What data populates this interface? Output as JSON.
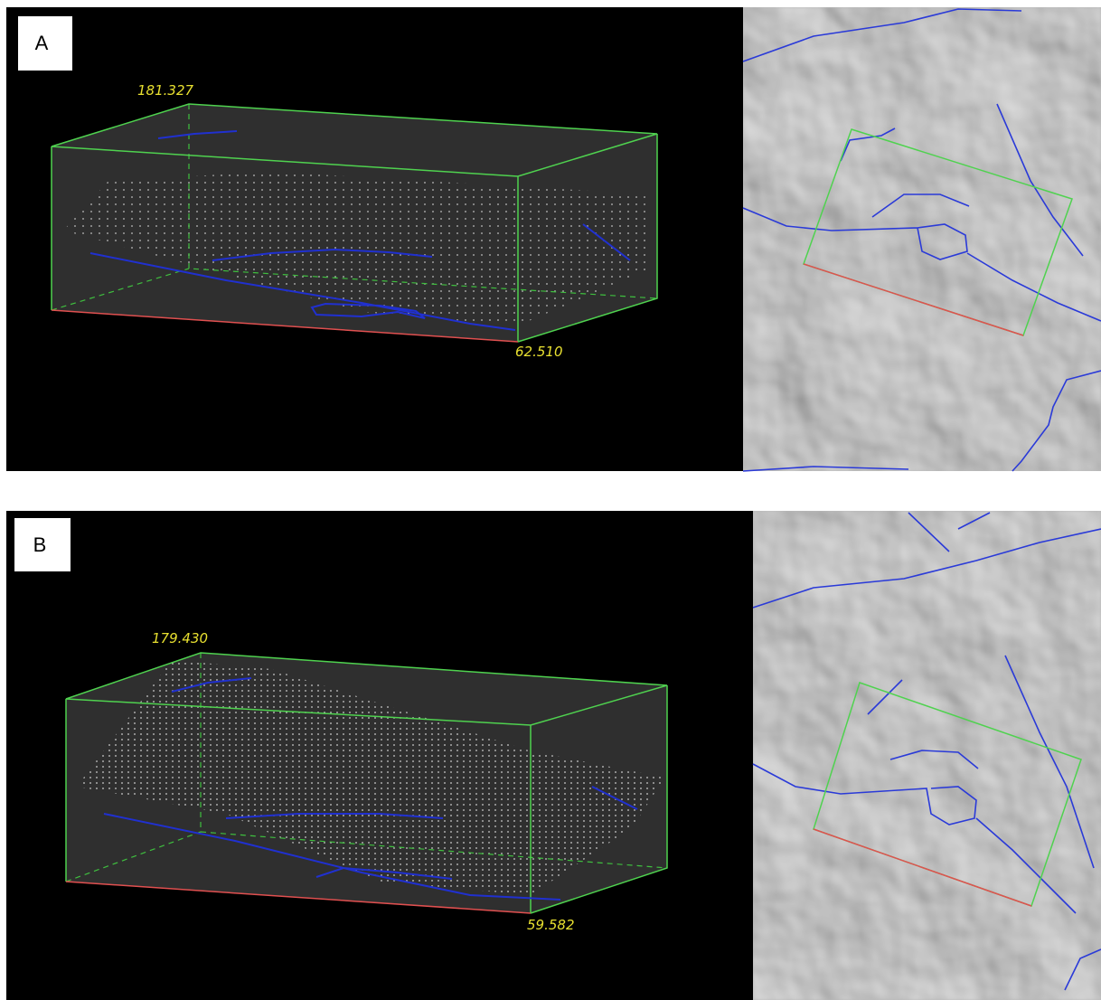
{
  "panels": [
    {
      "label": "A",
      "top_value": "181.327",
      "bottom_value": "62.510"
    },
    {
      "label": "B",
      "top_value": "179.430",
      "bottom_value": "59.582"
    }
  ]
}
